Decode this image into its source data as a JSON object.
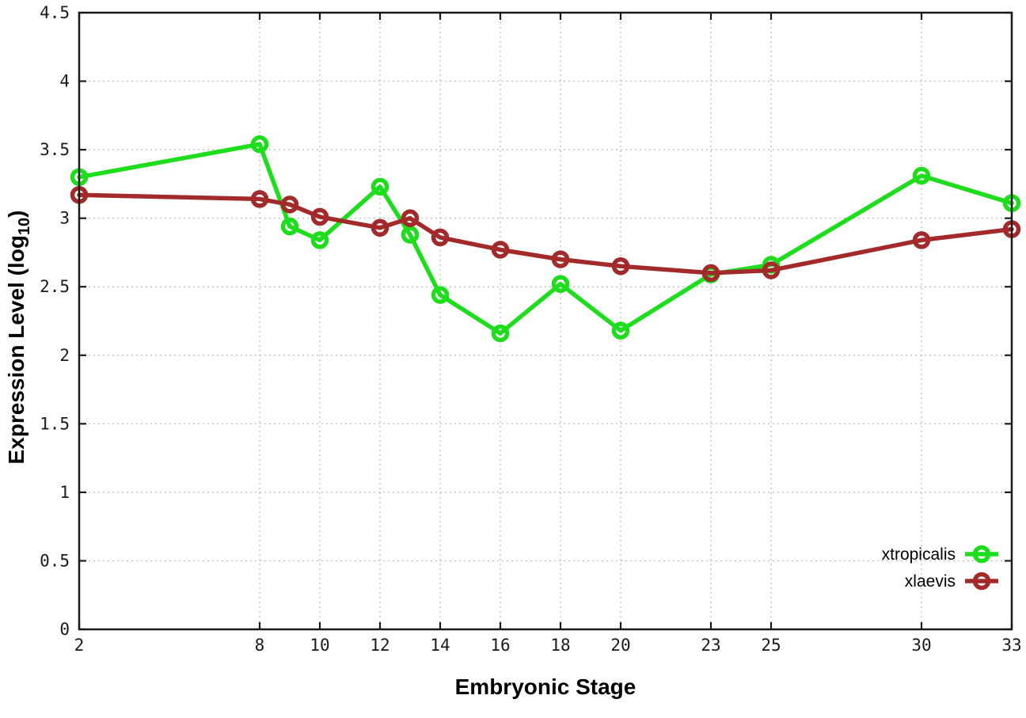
{
  "chart_data": {
    "type": "line",
    "title": "",
    "xlabel": "Embryonic Stage",
    "ylabel": "Expression Level (log10)",
    "ylabel_parts": [
      "Expression Level (log",
      "10",
      ")"
    ],
    "xlim": [
      2,
      33
    ],
    "ylim": [
      0,
      4.5
    ],
    "xticks": [
      2,
      8,
      10,
      12,
      14,
      16,
      18,
      20,
      23,
      25,
      30,
      33
    ],
    "yticks": [
      0,
      0.5,
      1,
      1.5,
      2,
      2.5,
      3,
      3.5,
      4,
      4.5
    ],
    "grid": true,
    "legend_position": "bottom-right",
    "x": [
      2,
      8,
      9,
      10,
      12,
      13,
      14,
      16,
      18,
      20,
      23,
      25,
      30,
      33
    ],
    "series": [
      {
        "name": "xtropicalis",
        "color": "#1ddd1d",
        "values": [
          3.3,
          3.54,
          2.94,
          2.84,
          3.23,
          2.88,
          2.44,
          2.16,
          2.52,
          2.18,
          2.59,
          2.66,
          3.31,
          3.11
        ]
      },
      {
        "name": "xlaevis",
        "color": "#a32a2a",
        "values": [
          3.17,
          3.14,
          3.1,
          3.01,
          2.93,
          3.0,
          2.86,
          2.77,
          2.7,
          2.65,
          2.6,
          2.62,
          2.84,
          2.92
        ]
      }
    ],
    "colors": {
      "grid": "#b8b8b8",
      "axis": "#1a1a1a",
      "background": "#ffffff"
    }
  }
}
